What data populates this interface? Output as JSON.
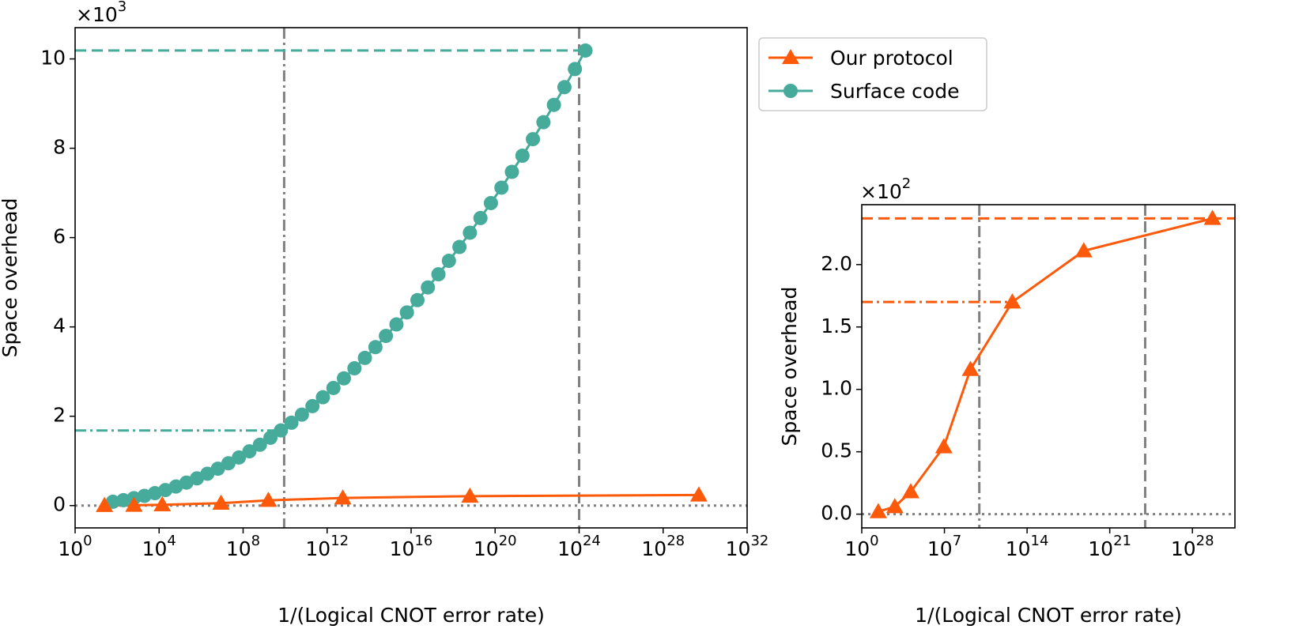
{
  "chart_data": [
    {
      "type": "line",
      "xscale": "log",
      "xlabel": "1/(Logical CNOT error rate)",
      "ylabel": "Space overhead",
      "y_multiplier": "×10^3",
      "xlim": [
        1,
        1e+32
      ],
      "xticks": [
        {
          "value": 1,
          "label": "10^0"
        },
        {
          "value": 10000.0,
          "label": "10^4"
        },
        {
          "value": 100000000.0,
          "label": "10^8"
        },
        {
          "value": 1000000000000.0,
          "label": "10^12"
        },
        {
          "value": 1e+16,
          "label": "10^16"
        },
        {
          "value": 1e+20,
          "label": "10^20"
        },
        {
          "value": 1e+24,
          "label": "10^24"
        },
        {
          "value": 1e+28,
          "label": "10^28"
        },
        {
          "value": 1e+32,
          "label": "10^32"
        }
      ],
      "ylim": [
        -0.5,
        10.7
      ],
      "yticks": [
        0,
        2,
        4,
        6,
        8,
        10
      ],
      "legend": "outside-upper-right",
      "series": [
        {
          "name": "Our protocol",
          "color": "#fc5a0a",
          "marker": "triangle",
          "x": [
            25,
            631,
            14125,
            8900000.0,
            1600000000.0,
            5600000000000.0,
            6.3e+18,
            5e+29
          ],
          "values": [
            0.002,
            0.006,
            0.018,
            0.054,
            0.116,
            0.17,
            0.211,
            0.237
          ]
        },
        {
          "name": "Surface code",
          "color": "#47ab9b",
          "marker": "circle",
          "x": [
            63.1,
            200,
            631,
            1995,
            6310,
            19953,
            63096,
            199526,
            630957,
            1995000.0,
            6310000.0,
            20000000.0,
            63000000.0,
            200000000.0,
            630000000.0,
            2000000000.0,
            6300000000.0,
            20000000000.0,
            63000000000.0,
            200000000000.0,
            630000000000.0,
            2000000000000.0,
            6300000000000.0,
            20000000000000.0,
            63000000000000.0,
            200000000000000.0,
            630000000000000.0,
            2000000000000000.0,
            6300000000000000.0,
            2e+16,
            6.3e+16,
            2e+17,
            6.3e+17,
            2e+18,
            6.3e+18,
            2e+19,
            6.3e+19,
            2e+20,
            6.3e+20,
            2e+21,
            6.3e+21,
            2e+22,
            6.3e+22,
            2e+23,
            6.3e+23,
            2e+24
          ],
          "values": [
            0.086,
            0.121,
            0.165,
            0.217,
            0.278,
            0.348,
            0.426,
            0.513,
            0.609,
            0.713,
            0.825,
            0.947,
            1.076,
            1.215,
            1.362,
            1.518,
            1.682,
            1.855,
            2.036,
            2.226,
            2.425,
            2.632,
            2.848,
            3.073,
            3.306,
            3.547,
            3.798,
            4.056,
            4.324,
            4.6,
            4.884,
            5.178,
            5.48,
            5.79,
            6.109,
            6.437,
            6.773,
            7.118,
            7.471,
            7.833,
            8.204,
            8.583,
            8.971,
            9.368,
            9.773,
            10.187
          ]
        }
      ],
      "reference_lines": [
        {
          "orientation": "horizontal",
          "value": 0,
          "color": "#808080",
          "style": "dotted"
        },
        {
          "orientation": "vertical",
          "value": 9000000000.0,
          "color": "#808080",
          "style": "dashdot"
        },
        {
          "orientation": "vertical",
          "value": 1e+24,
          "color": "#808080",
          "style": "dashed"
        },
        {
          "orientation": "horizontal",
          "value": 10.19,
          "x_end": 2e+24,
          "color": "#47ab9b",
          "style": "dashed"
        },
        {
          "orientation": "horizontal",
          "value": 1.68,
          "x_end": 5000000000.0,
          "color": "#47ab9b",
          "style": "dashdot"
        }
      ]
    },
    {
      "type": "line",
      "xscale": "log",
      "xlabel": "1/(Logical CNOT error rate)",
      "ylabel": "Space overhead",
      "y_multiplier": "×10^2",
      "xlim": [
        1,
        4e+31
      ],
      "xticks": [
        {
          "value": 1,
          "label": "10^0"
        },
        {
          "value": 10000000.0,
          "label": "10^7"
        },
        {
          "value": 100000000000000.0,
          "label": "10^14"
        },
        {
          "value": 1e+21,
          "label": "10^21"
        },
        {
          "value": 1e+28,
          "label": "10^28"
        }
      ],
      "ylim": [
        -0.11,
        2.48
      ],
      "yticks": [
        {
          "value": 0,
          "label": "0.0"
        },
        {
          "value": 0.5,
          "label": "0.5"
        },
        {
          "value": 1,
          "label": "1.0"
        },
        {
          "value": 1.5,
          "label": "1.5"
        },
        {
          "value": 2,
          "label": "2.0"
        }
      ],
      "series": [
        {
          "color": "#fc5a0a",
          "marker": "triangle",
          "x": [
            25,
            631,
            14125,
            8900000.0,
            1600000000.0,
            5600000000000.0,
            6.3e+18,
            5e+29
          ],
          "values": [
            0.02,
            0.06,
            0.18,
            0.54,
            1.16,
            1.7,
            2.11,
            2.37
          ]
        }
      ],
      "reference_lines": [
        {
          "orientation": "horizontal",
          "value": 0,
          "color": "#808080",
          "style": "dotted"
        },
        {
          "orientation": "vertical",
          "value": 9000000000.0,
          "color": "#808080",
          "style": "dashdot"
        },
        {
          "orientation": "vertical",
          "value": 1e+24,
          "color": "#808080",
          "style": "dashed"
        },
        {
          "orientation": "horizontal",
          "value": 2.37,
          "color": "#fc5a0a",
          "style": "dashed"
        },
        {
          "orientation": "horizontal",
          "value": 1.7,
          "x_end": 5600000000000.0,
          "color": "#fc5a0a",
          "style": "dashdot"
        }
      ]
    }
  ]
}
